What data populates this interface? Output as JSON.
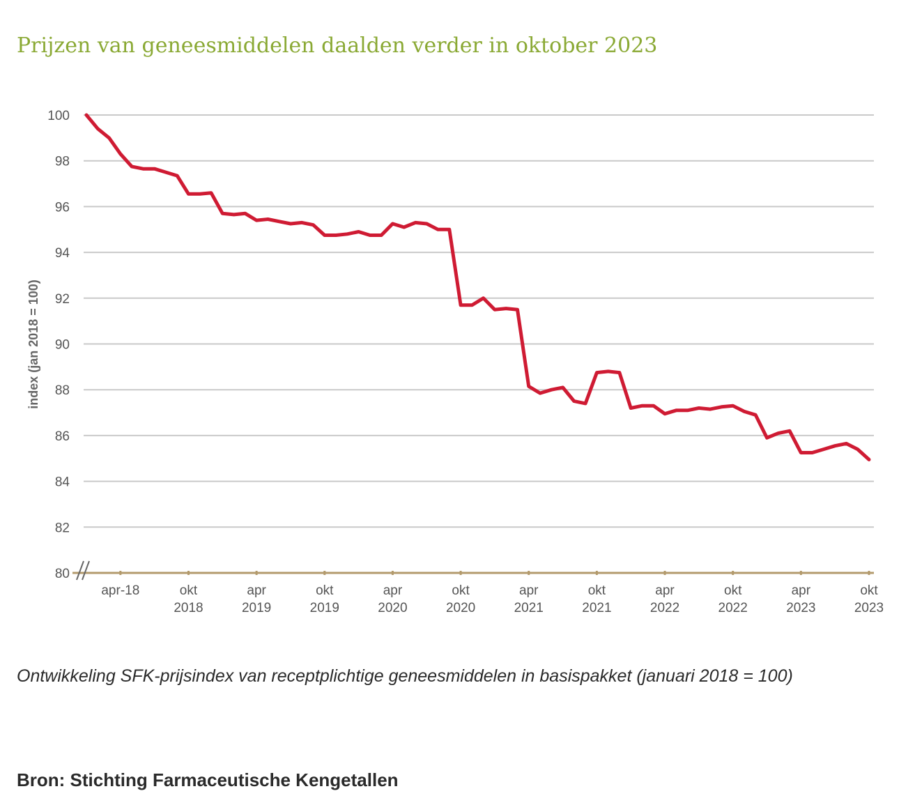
{
  "title": "Prijzen van geneesmiddelen daalden verder in oktober 2023",
  "caption": "Ontwikkeling SFK-prijsindex van receptplichtige geneesmiddelen in basispakket (januari 2018 = 100)",
  "source": "Bron: Stichting Farmaceutische Kengetallen",
  "colors": {
    "title": "#8aa934",
    "line": "#cf1b33",
    "grid": "#c9c9c9",
    "axis": "#b39a6c",
    "text": "#555555"
  },
  "chart_data": {
    "type": "line",
    "ylabel": "index (jan 2018 = 100)",
    "ylim": [
      80,
      100
    ],
    "yticks": [
      80,
      82,
      84,
      86,
      88,
      90,
      92,
      94,
      96,
      98,
      100
    ],
    "xticks": [
      {
        "line1": "apr-18",
        "line2": "",
        "month": 3
      },
      {
        "line1": "okt",
        "line2": "2018",
        "month": 9
      },
      {
        "line1": "apr",
        "line2": "2019",
        "month": 15
      },
      {
        "line1": "okt",
        "line2": "2019",
        "month": 21
      },
      {
        "line1": "apr",
        "line2": "2020",
        "month": 27
      },
      {
        "line1": "okt",
        "line2": "2020",
        "month": 33
      },
      {
        "line1": "apr",
        "line2": "2021",
        "month": 39
      },
      {
        "line1": "okt",
        "line2": "2021",
        "month": 45
      },
      {
        "line1": "apr",
        "line2": "2022",
        "month": 51
      },
      {
        "line1": "okt",
        "line2": "2022",
        "month": 57
      },
      {
        "line1": "apr",
        "line2": "2023",
        "month": 63
      },
      {
        "line1": "okt",
        "line2": "2023",
        "month": 69
      }
    ],
    "grid": true,
    "series": [
      {
        "values": [
          100.0,
          99.4,
          99.0,
          98.3,
          97.75,
          97.65,
          97.65,
          97.5,
          97.35,
          96.55,
          96.55,
          96.6,
          95.7,
          95.65,
          95.7,
          95.4,
          95.45,
          95.35,
          95.25,
          95.3,
          95.2,
          94.75,
          94.75,
          94.8,
          94.9,
          94.75,
          94.75,
          95.25,
          95.1,
          95.3,
          95.25,
          95.0,
          95.0,
          91.7,
          91.7,
          92.0,
          91.5,
          91.55,
          91.5,
          88.15,
          87.85,
          88.0,
          88.1,
          87.5,
          87.4,
          88.75,
          88.8,
          88.75,
          87.2,
          87.3,
          87.3,
          86.95,
          87.1,
          87.1,
          87.2,
          87.15,
          87.25,
          87.3,
          87.05,
          86.9,
          85.9,
          86.1,
          86.2,
          85.25,
          85.25,
          85.4,
          85.55,
          85.65,
          85.4,
          84.95
        ]
      }
    ]
  }
}
